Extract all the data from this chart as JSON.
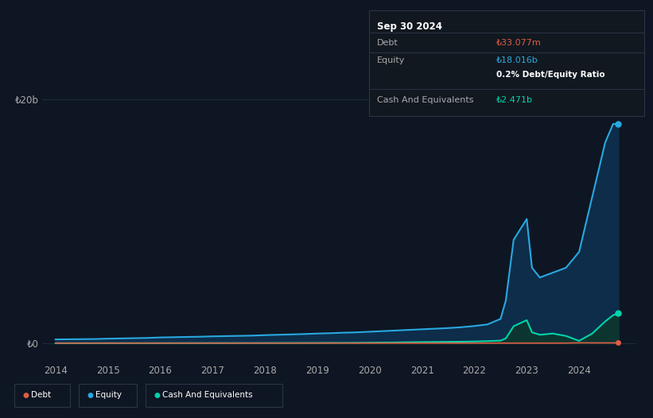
{
  "bg_color": "#0e1623",
  "plot_bg_color": "#0e1623",
  "grid_color": "#1e2d3d",
  "ylabel": "",
  "xlabel": "",
  "ylim_min": -1500000000.0,
  "ylim_max": 22000000000.0,
  "ytick_vals": [
    0,
    20000000000.0
  ],
  "ytick_labels": [
    "₺0",
    "₺20b"
  ],
  "years": [
    2014.0,
    2014.25,
    2014.5,
    2014.75,
    2015.0,
    2015.25,
    2015.5,
    2015.75,
    2016.0,
    2016.25,
    2016.5,
    2016.75,
    2017.0,
    2017.25,
    2017.5,
    2017.75,
    2018.0,
    2018.25,
    2018.5,
    2018.75,
    2019.0,
    2019.25,
    2019.5,
    2019.75,
    2020.0,
    2020.25,
    2020.5,
    2020.75,
    2021.0,
    2021.25,
    2021.5,
    2021.75,
    2022.0,
    2022.25,
    2022.5,
    2022.6,
    2022.75,
    2023.0,
    2023.1,
    2023.25,
    2023.5,
    2023.75,
    2024.0,
    2024.25,
    2024.5,
    2024.65,
    2024.75
  ],
  "equity": [
    320000000.0,
    330000000.0,
    340000000.0,
    350000000.0,
    380000000.0,
    400000000.0,
    420000000.0,
    440000000.0,
    480000000.0,
    500000000.0,
    520000000.0,
    540000000.0,
    570000000.0,
    590000000.0,
    610000000.0,
    630000000.0,
    670000000.0,
    700000000.0,
    730000000.0,
    760000000.0,
    800000000.0,
    830000000.0,
    870000000.0,
    900000000.0,
    950000000.0,
    1000000000.0,
    1050000000.0,
    1100000000.0,
    1150000000.0,
    1200000000.0,
    1250000000.0,
    1320000000.0,
    1420000000.0,
    1550000000.0,
    2000000000.0,
    3500000000.0,
    8500000000.0,
    10200000000.0,
    6200000000.0,
    5400000000.0,
    5800000000.0,
    6200000000.0,
    7500000000.0,
    12000000000.0,
    16500000000.0,
    18000000000.0,
    18016000000.0
  ],
  "debt": [
    15000000.0,
    15000000.0,
    15000000.0,
    15000000.0,
    15000000.0,
    15000000.0,
    15000000.0,
    15000000.0,
    15000000.0,
    15000000.0,
    15000000.0,
    15000000.0,
    15000000.0,
    15000000.0,
    15000000.0,
    15000000.0,
    15000000.0,
    15000000.0,
    15000000.0,
    15000000.0,
    15000000.0,
    15000000.0,
    15000000.0,
    15000000.0,
    15000000.0,
    15000000.0,
    15000000.0,
    15000000.0,
    15000000.0,
    15000000.0,
    15000000.0,
    15000000.0,
    15000000.0,
    15000000.0,
    15000000.0,
    15000000.0,
    15000000.0,
    15000000.0,
    15000000.0,
    15000000.0,
    15000000.0,
    15000000.0,
    40000000.0,
    33000000.0,
    33000000.0,
    33000000.0,
    33000000.0
  ],
  "cash": [
    8000000.0,
    8000000.0,
    9000000.0,
    9000000.0,
    10000000.0,
    10000000.0,
    11000000.0,
    11000000.0,
    12000000.0,
    13000000.0,
    14000000.0,
    15000000.0,
    16000000.0,
    17000000.0,
    18000000.0,
    19000000.0,
    20000000.0,
    22000000.0,
    24000000.0,
    26000000.0,
    28000000.0,
    32000000.0,
    36000000.0,
    40000000.0,
    50000000.0,
    60000000.0,
    70000000.0,
    85000000.0,
    100000000.0,
    110000000.0,
    120000000.0,
    130000000.0,
    150000000.0,
    180000000.0,
    220000000.0,
    400000000.0,
    1400000000.0,
    1900000000.0,
    900000000.0,
    700000000.0,
    800000000.0,
    600000000.0,
    200000000.0,
    800000000.0,
    1800000000.0,
    2300000000.0,
    2471000000.0
  ],
  "equity_color": "#29a8e0",
  "debt_color": "#e05d44",
  "cash_color": "#00d4aa",
  "equity_fill": "#0d2d4a",
  "cash_fill": "#0d3530",
  "xticks": [
    2014,
    2015,
    2016,
    2017,
    2018,
    2019,
    2020,
    2021,
    2022,
    2023,
    2024
  ],
  "xtick_labels": [
    "2014",
    "2015",
    "2016",
    "2017",
    "2018",
    "2019",
    "2020",
    "2021",
    "2022",
    "2023",
    "2024"
  ],
  "tooltip_date": "Sep 30 2024",
  "tooltip_debt_label": "Debt",
  "tooltip_debt_value": "₺33.077m",
  "tooltip_equity_label": "Equity",
  "tooltip_equity_value": "₺18.016b",
  "tooltip_ratio": "0.2% Debt/Equity Ratio",
  "tooltip_cash_label": "Cash And Equivalents",
  "tooltip_cash_value": "₺2.471b",
  "legend_labels": [
    "Debt",
    "Equity",
    "Cash And Equivalents"
  ]
}
